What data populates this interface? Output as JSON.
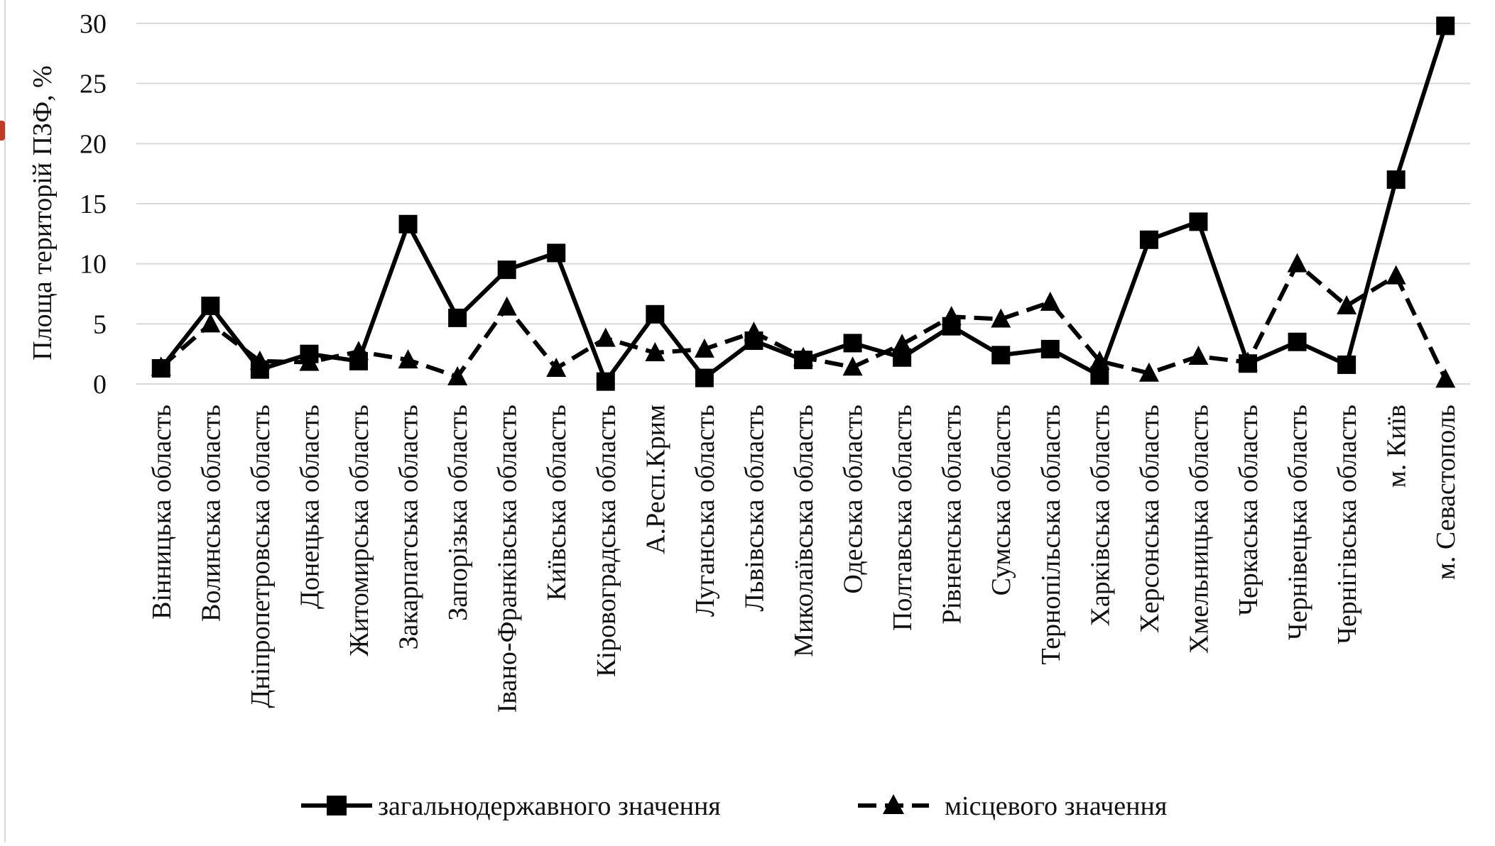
{
  "chart_data": {
    "type": "line",
    "title": "",
    "xlabel": "",
    "ylabel": "Площа територій ПЗФ, %",
    "ylim": [
      0,
      30
    ],
    "yticks": [
      0,
      5,
      10,
      15,
      20,
      25,
      30
    ],
    "grid": "horizontal",
    "legend_position": "bottom",
    "categories": [
      "Вінницька  область",
      "Волинська  область",
      "Дніпропетровська область",
      "Донецька область",
      "Житомирська область",
      "Закарпатська область",
      "Запорізька  область",
      "Івано-Франківська  область",
      "Київська область",
      "Кіровоградська область",
      "А.Респ.Крим",
      "Луганська область",
      "Львівська область",
      "Миколаївська область",
      "Одеська область",
      "Полтавська область",
      "Рівненська  область",
      "Сумська область",
      "Тернопільська  область",
      "Харківська область",
      "Херсонська  область",
      "Хмельницька  область",
      "Черкаська область",
      "Чернівецька  область",
      "Чернігівська  область",
      "м. Київ",
      "м. Севастополь"
    ],
    "series": [
      {
        "name": "загальнодержавного значення",
        "style": "solid",
        "marker": "square",
        "color": "#000000",
        "values": [
          1.3,
          6.5,
          1.2,
          2.5,
          1.9,
          13.3,
          5.5,
          9.5,
          10.9,
          0.2,
          5.8,
          0.5,
          3.6,
          2.0,
          3.4,
          2.2,
          4.8,
          2.4,
          2.9,
          0.7,
          12.0,
          13.5,
          1.7,
          3.5,
          1.6,
          17.0,
          29.8
        ]
      },
      {
        "name": "місцевого значення",
        "style": "dashed",
        "marker": "triangle",
        "color": "#000000",
        "values": [
          1.4,
          5.0,
          1.9,
          1.8,
          2.7,
          2.0,
          0.6,
          6.4,
          1.3,
          3.8,
          2.6,
          2.9,
          4.3,
          2.2,
          1.4,
          3.3,
          5.6,
          5.4,
          6.8,
          1.9,
          0.9,
          2.3,
          1.8,
          10.0,
          6.5,
          9.0,
          0.4
        ]
      }
    ]
  },
  "colors": {
    "background": "#ffffff",
    "grid": "#d9d9d9",
    "line": "#000000"
  }
}
